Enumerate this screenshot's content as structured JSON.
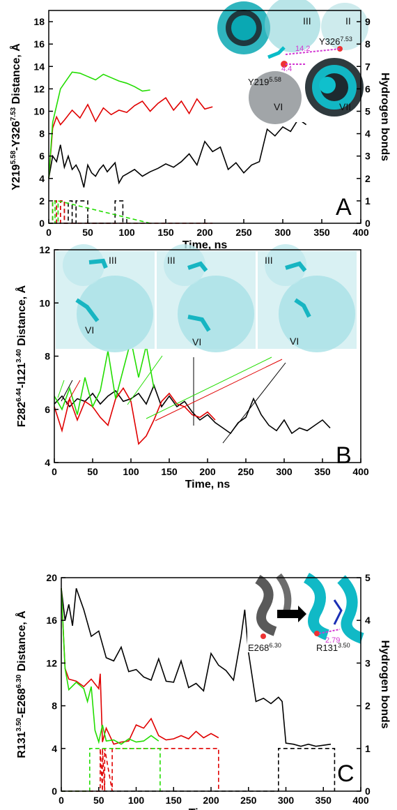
{
  "chart_data": [
    {
      "type": "line",
      "panel_label": "A",
      "xlabel": "Time, ns",
      "ylabel_main": "Y219",
      "ylabel_sup1": "5.58",
      "ylabel_mid": "-Y326",
      "ylabel_sup2": "7.53",
      "ylabel_tail": " Distance, Å",
      "y2label": "Hydrogen bonds",
      "xlim": [
        0,
        400
      ],
      "ylim": [
        0,
        19
      ],
      "y2lim": [
        0,
        9.5
      ],
      "xticks": [
        "0",
        "50",
        "100",
        "150",
        "200",
        "250",
        "300",
        "350",
        "400"
      ],
      "yticks": [
        "0",
        "2",
        "4",
        "6",
        "8",
        "10",
        "12",
        "14",
        "16",
        "18"
      ],
      "y2ticks": [
        "0",
        "1",
        "2",
        "3",
        "4",
        "5",
        "6",
        "7",
        "8",
        "9"
      ],
      "colors": {
        "black": "#000000",
        "red": "#e00000",
        "green": "#22dd00"
      },
      "series": [
        {
          "color": "black",
          "x": [
            0,
            5,
            10,
            15,
            20,
            25,
            30,
            35,
            40,
            45,
            50,
            55,
            60,
            65,
            70,
            75,
            80,
            85,
            90,
            95,
            100,
            110,
            120,
            130,
            140,
            150,
            160,
            170,
            180,
            190,
            200,
            210,
            220,
            230,
            240,
            250,
            260,
            270,
            280,
            290,
            300,
            310,
            320,
            330
          ],
          "y": [
            4,
            6,
            5.5,
            7,
            5,
            6,
            4.8,
            5.2,
            4.5,
            3.2,
            5.2,
            4.5,
            4.2,
            4.8,
            5.2,
            4.6,
            5,
            5.4,
            3.6,
            4.2,
            4.4,
            4.8,
            4.2,
            4.6,
            4.9,
            5.3,
            5,
            5.5,
            6.2,
            5.2,
            7.3,
            6.4,
            6.8,
            4.8,
            5.4,
            4.5,
            5.2,
            5.5,
            8.4,
            7.8,
            8.6,
            8.2,
            9.3,
            8.8
          ]
        },
        {
          "color": "red",
          "x": [
            0,
            5,
            10,
            15,
            20,
            30,
            40,
            50,
            60,
            70,
            80,
            90,
            100,
            110,
            120,
            130,
            140,
            150,
            160,
            170,
            180,
            190,
            200,
            210
          ],
          "y": [
            4,
            8.5,
            9.5,
            8.8,
            9.2,
            10.1,
            9.4,
            10.6,
            9.1,
            10.3,
            9.7,
            10.1,
            9.9,
            10.5,
            10.9,
            10,
            10.7,
            11.2,
            10.1,
            10.9,
            9.8,
            11.1,
            10.2,
            10.4
          ]
        },
        {
          "color": "green",
          "x": [
            0,
            5,
            10,
            15,
            20,
            25,
            30,
            40,
            50,
            60,
            70,
            80,
            90,
            100,
            110,
            120,
            130
          ],
          "y": [
            4,
            9,
            10.5,
            12,
            12.5,
            13,
            13.5,
            13.4,
            13.1,
            12.8,
            13.3,
            13,
            12.7,
            12.5,
            12.2,
            11.8,
            11.9
          ]
        },
        {
          "color": "black",
          "axis": "right",
          "dashed": true,
          "x": [
            0,
            5,
            5,
            10,
            10,
            15,
            15,
            20,
            20,
            25,
            25,
            30,
            30,
            35,
            35,
            40,
            40,
            50,
            50,
            85,
            85,
            95,
            95
          ],
          "y": [
            0,
            0,
            1,
            1,
            0,
            0,
            1,
            1,
            0,
            0,
            1,
            1,
            0,
            0,
            1,
            1,
            1,
            1,
            0,
            0,
            1,
            1,
            0
          ]
        },
        {
          "color": "red",
          "axis": "right",
          "dashed": true,
          "x": [
            0,
            5,
            5,
            10,
            10,
            15,
            15,
            20,
            20,
            210
          ],
          "y": [
            0,
            0,
            1,
            1,
            0,
            0,
            1,
            1,
            0,
            0
          ]
        },
        {
          "color": "green",
          "axis": "right",
          "dashed": true,
          "x": [
            0,
            5,
            5,
            8,
            8,
            12,
            12,
            130
          ],
          "y": [
            0,
            0,
            1,
            1,
            0,
            0,
            1,
            0
          ]
        }
      ],
      "inset": {
        "labels": [
          "III",
          "II",
          "VI",
          "VII",
          "Y219",
          "Y326"
        ],
        "sup_y219": "5.58",
        "sup_y326": "7.53",
        "dist1": "14.2",
        "dist2": "4.4"
      }
    },
    {
      "type": "line",
      "panel_label": "B",
      "xlabel": "Time, ns",
      "ylabel_main": "F282",
      "ylabel_sup1": "6.44",
      "ylabel_mid": "-I121",
      "ylabel_sup2": "3.40",
      "ylabel_tail": " Distance, Å",
      "xlim": [
        0,
        400
      ],
      "ylim": [
        4,
        12
      ],
      "xticks": [
        "0",
        "50",
        "100",
        "150",
        "200",
        "250",
        "300",
        "350",
        "400"
      ],
      "yticks": [
        "4",
        "6",
        "8",
        "10",
        "12"
      ],
      "series": [
        {
          "color": "black",
          "x": [
            0,
            10,
            20,
            30,
            40,
            50,
            60,
            70,
            80,
            90,
            100,
            110,
            120,
            130,
            140,
            150,
            160,
            170,
            180,
            190,
            200,
            210,
            220,
            230,
            240,
            250,
            260,
            270,
            280,
            290,
            300,
            310,
            320,
            330,
            340,
            350,
            360
          ],
          "y": [
            6.2,
            6.5,
            6.1,
            6.4,
            6.3,
            6.6,
            6.2,
            6.5,
            6.7,
            6.3,
            6.4,
            6.6,
            6.2,
            6.9,
            6.1,
            6.5,
            6.1,
            6.3,
            5.9,
            5.6,
            5.8,
            5.5,
            5.3,
            5.1,
            5.5,
            5.7,
            6.4,
            5.8,
            5.4,
            5.2,
            5.6,
            5.1,
            5.3,
            5.2,
            5.4,
            5.6,
            5.3
          ]
        },
        {
          "color": "red",
          "x": [
            0,
            10,
            20,
            30,
            40,
            50,
            60,
            70,
            80,
            90,
            100,
            110,
            120,
            130,
            140,
            150,
            160,
            170,
            180,
            190,
            200,
            210
          ],
          "y": [
            6.1,
            5.2,
            6.4,
            5.6,
            6.3,
            6.1,
            5.7,
            5.4,
            6.4,
            6.8,
            6.3,
            4.7,
            5,
            5.6,
            6.3,
            6.6,
            6.2,
            6.1,
            5.8,
            5.7,
            5.9,
            5.6
          ]
        },
        {
          "color": "green",
          "x": [
            0,
            10,
            20,
            30,
            40,
            50,
            60,
            70,
            80,
            90,
            100,
            110,
            120,
            130
          ],
          "y": [
            6.5,
            6,
            6.8,
            5.8,
            7.2,
            6.1,
            6.7,
            8.2,
            6.4,
            7.5,
            8.6,
            7.2,
            8.4,
            6.8
          ]
        }
      ],
      "inset": {
        "labels": [
          "III",
          "VI"
        ]
      }
    },
    {
      "type": "line",
      "panel_label": "C",
      "xlabel": "Time, ns",
      "ylabel_main": "R131",
      "ylabel_sup1": "3.50",
      "ylabel_mid": "-E268",
      "ylabel_sup2": "6.30",
      "ylabel_tail": " Distance, Å",
      "y2label": "Hydrogen bonds",
      "xlim": [
        0,
        400
      ],
      "ylim": [
        0,
        20
      ],
      "y2lim": [
        0,
        5
      ],
      "xticks": [
        "0",
        "50",
        "100",
        "150",
        "200",
        "250",
        "300",
        "350",
        "400"
      ],
      "yticks": [
        "0",
        "4",
        "8",
        "12",
        "16",
        "20"
      ],
      "y2ticks": [
        "0",
        "1",
        "2",
        "3",
        "4",
        "5"
      ],
      "series": [
        {
          "color": "black",
          "x": [
            0,
            5,
            10,
            15,
            20,
            30,
            40,
            50,
            60,
            70,
            80,
            90,
            100,
            110,
            120,
            130,
            140,
            150,
            160,
            170,
            180,
            190,
            200,
            210,
            220,
            230,
            240,
            245,
            250,
            260,
            270,
            280,
            290,
            295,
            300,
            310,
            320,
            330,
            340,
            350,
            360
          ],
          "y": [
            19,
            16,
            17.5,
            15.5,
            19,
            17,
            14.5,
            15,
            12.5,
            12.2,
            13.5,
            11.2,
            11.4,
            10.7,
            10.4,
            12.4,
            10.3,
            10.2,
            12.2,
            9.7,
            10.1,
            9.4,
            12.9,
            11.8,
            11.3,
            10.4,
            14.4,
            17,
            13,
            8.4,
            8.7,
            8.2,
            8.8,
            8.4,
            4.5,
            4.4,
            4.2,
            4.4,
            4.2,
            4.3,
            4.4
          ]
        },
        {
          "color": "red",
          "x": [
            0,
            5,
            10,
            20,
            30,
            40,
            50,
            52,
            55,
            60,
            70,
            80,
            90,
            100,
            110,
            120,
            130,
            140,
            150,
            160,
            170,
            180,
            190,
            200,
            210
          ],
          "y": [
            19,
            11.5,
            10.5,
            10.3,
            9.8,
            10.5,
            9.6,
            11,
            4.6,
            5.9,
            4.4,
            4.6,
            4.7,
            6.2,
            5.9,
            6.8,
            5.2,
            4.8,
            4.9,
            5.2,
            4.9,
            5.6,
            5,
            5.4,
            5
          ]
        },
        {
          "color": "green",
          "x": [
            0,
            5,
            10,
            20,
            30,
            35,
            40,
            45,
            50,
            55,
            60,
            70,
            80,
            90,
            100,
            110,
            120,
            130
          ],
          "y": [
            19,
            11.5,
            9.5,
            10.2,
            9.6,
            8.4,
            9.8,
            5.7,
            4.6,
            6.2,
            4.7,
            4.8,
            4.4,
            4.9,
            4.6,
            4.7,
            5.2,
            4.7
          ]
        },
        {
          "color": "black",
          "axis": "right",
          "dashed": true,
          "x": [
            0,
            290,
            290,
            365,
            365
          ],
          "y": [
            0,
            0,
            1,
            1,
            0
          ]
        },
        {
          "color": "red",
          "axis": "right",
          "dashed": true,
          "x": [
            0,
            52,
            52,
            55,
            55,
            58,
            58,
            68,
            68,
            210,
            210
          ],
          "y": [
            0,
            0,
            1,
            0,
            1,
            0,
            1,
            0,
            1,
            1,
            0
          ]
        },
        {
          "color": "green",
          "axis": "right",
          "dashed": true,
          "x": [
            0,
            38,
            38,
            132,
            132
          ],
          "y": [
            0,
            0,
            1,
            1,
            0
          ]
        }
      ],
      "inset": {
        "label_e": "E268",
        "sup_e": "6.30",
        "label_r": "R131",
        "sup_r": "3.50",
        "dist": "2.79"
      }
    }
  ]
}
